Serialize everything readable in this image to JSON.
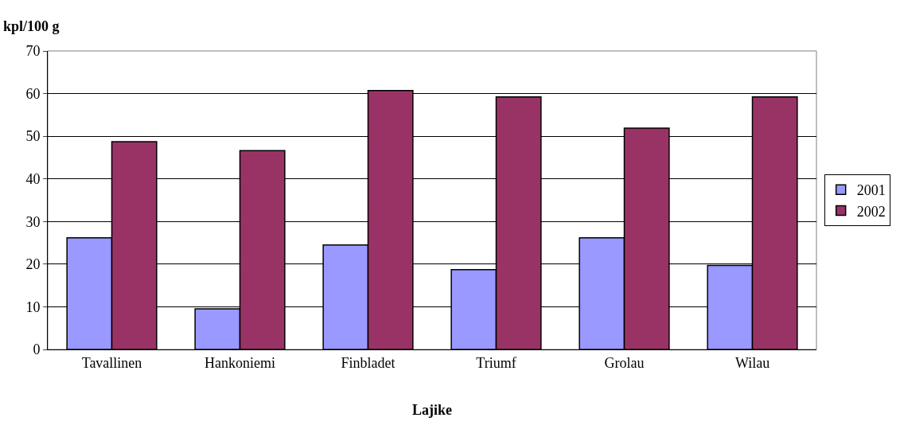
{
  "chart_data": {
    "type": "bar",
    "ylabel": "kpl/100 g",
    "xlabel": "Lajike",
    "categories": [
      "Tavallinen",
      "Hankoniemi",
      "Finbladet",
      "Triumf",
      "Grolau",
      "Wilau"
    ],
    "series": [
      {
        "name": "2001",
        "color": "#9999ff",
        "values": [
          26.2,
          9.5,
          24.5,
          18.7,
          26.2,
          19.7
        ]
      },
      {
        "name": "2002",
        "color": "#993366",
        "values": [
          48.7,
          46.6,
          60.7,
          59.2,
          51.9,
          59.2
        ]
      }
    ],
    "ylim": [
      0,
      70
    ],
    "yticks": [
      0,
      10,
      20,
      30,
      40,
      50,
      60,
      70
    ],
    "grid": "y",
    "legend": "right"
  }
}
